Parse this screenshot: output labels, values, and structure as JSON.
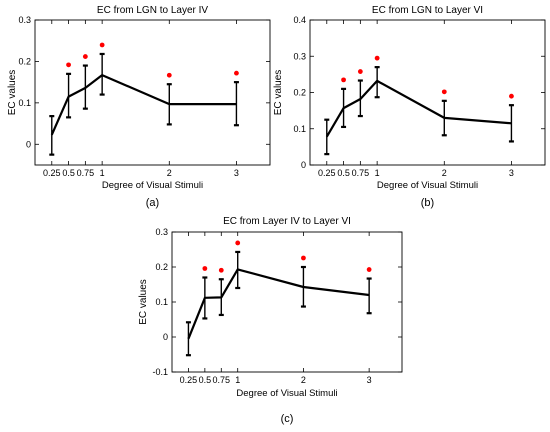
{
  "chart_data": [
    {
      "type": "line",
      "title": "EC from LGN to Layer IV",
      "xlabel": "Degree of Visual Stimuli",
      "ylabel": "EC values",
      "panel_label": "(a)",
      "x": [
        0.25,
        0.5,
        0.75,
        1,
        2,
        3
      ],
      "x_tick_labels": [
        "0.25",
        "0.5",
        "0.75",
        "1",
        "2",
        "3"
      ],
      "values": [
        0.023,
        0.115,
        0.136,
        0.167,
        0.097,
        0.097
      ],
      "error_upper": [
        0.068,
        0.17,
        0.19,
        0.218,
        0.145,
        0.15
      ],
      "error_lower": [
        -0.025,
        0.065,
        0.086,
        0.12,
        0.048,
        0.046
      ],
      "significance_marks": [
        false,
        true,
        true,
        true,
        true,
        true
      ],
      "ylim": [
        -0.05,
        0.3
      ],
      "y_ticks": [
        "0",
        "0.1",
        "0.2",
        "0.3"
      ],
      "y_tick_values": [
        0,
        0.1,
        0.2,
        0.3
      ],
      "grid": false
    },
    {
      "type": "line",
      "title": "EC from LGN to Layer VI",
      "xlabel": "Degree of Visual Stimuli",
      "ylabel": "EC values",
      "panel_label": "(b)",
      "x": [
        0.25,
        0.5,
        0.75,
        1,
        2,
        3
      ],
      "x_tick_labels": [
        "0.25",
        "0.5",
        "0.75",
        "1",
        "2",
        "3"
      ],
      "values": [
        0.078,
        0.157,
        0.182,
        0.232,
        0.13,
        0.115
      ],
      "error_upper": [
        0.125,
        0.21,
        0.233,
        0.27,
        0.177,
        0.165
      ],
      "error_lower": [
        0.03,
        0.105,
        0.135,
        0.187,
        0.082,
        0.065
      ],
      "significance_marks": [
        false,
        true,
        true,
        true,
        true,
        true
      ],
      "ylim": [
        0,
        0.4
      ],
      "y_ticks": [
        "0",
        "0.1",
        "0.2",
        "0.3",
        "0.4"
      ],
      "y_tick_values": [
        0,
        0.1,
        0.2,
        0.3,
        0.4
      ],
      "grid": false
    },
    {
      "type": "line",
      "title": "EC from Layer IV to Layer VI",
      "xlabel": "Degree of Visual Stimuli",
      "ylabel": "EC values",
      "panel_label": "(c)",
      "x": [
        0.25,
        0.5,
        0.75,
        1,
        2,
        3
      ],
      "x_tick_labels": [
        "0.25",
        "0.5",
        "0.75",
        "1",
        "2",
        "3"
      ],
      "values": [
        -0.005,
        0.112,
        0.113,
        0.193,
        0.143,
        0.12
      ],
      "error_upper": [
        0.042,
        0.17,
        0.165,
        0.243,
        0.2,
        0.167
      ],
      "error_lower": [
        -0.052,
        0.053,
        0.063,
        0.14,
        0.087,
        0.068
      ],
      "significance_marks": [
        false,
        true,
        true,
        true,
        true,
        true
      ],
      "ylim": [
        -0.1,
        0.3
      ],
      "y_ticks": [
        "-0.1",
        "0",
        "0.1",
        "0.2",
        "0.3"
      ],
      "y_tick_values": [
        -0.1,
        0,
        0.1,
        0.2,
        0.3
      ],
      "grid": false
    }
  ],
  "colors": {
    "line": "#000000",
    "significance_marker": "#ff0000"
  }
}
